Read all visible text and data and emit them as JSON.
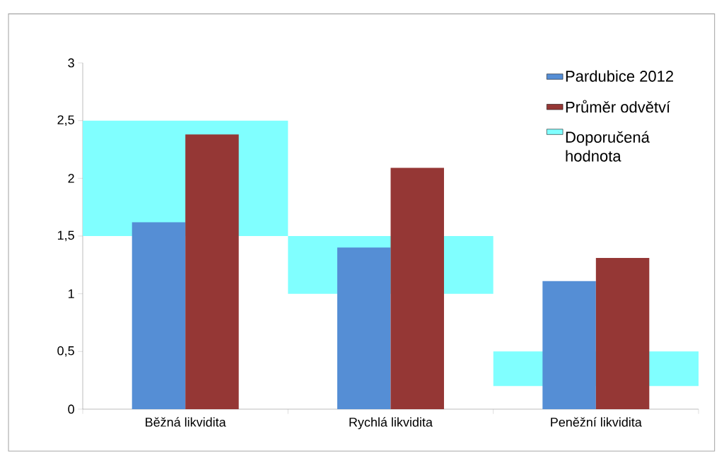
{
  "chart_data": {
    "type": "bar",
    "categories": [
      "Běžná likvidita",
      "Rychlá likvidita",
      "Peněžní likvidita"
    ],
    "series": [
      {
        "name": "Pardubice 2012",
        "color": "#558ed5",
        "values": [
          1.62,
          1.4,
          1.11
        ]
      },
      {
        "name": "Průměr odvětví",
        "color": "#953735",
        "values": [
          2.38,
          2.09,
          1.31
        ]
      },
      {
        "name": "Doporučená hodnota",
        "color": "#80ffff",
        "type": "bar",
        "base": [
          1.5,
          1,
          0.2
        ],
        "values": [
          1,
          0.5,
          0.3
        ]
      }
    ],
    "ylim": [
      0,
      3
    ],
    "yticks": [
      0,
      {
        "value": 0.5,
        "label": "0,5"
      },
      1,
      {
        "value": 1.5,
        "label": "1,5"
      },
      2,
      {
        "value": 2.5,
        "label": "2,5"
      },
      3
    ],
    "legend": "top right"
  }
}
